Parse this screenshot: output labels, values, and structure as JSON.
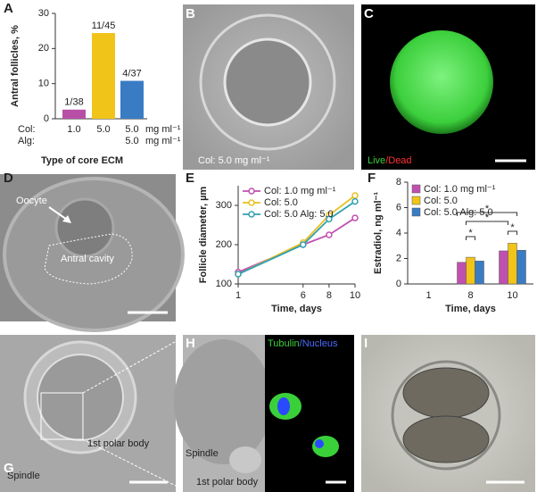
{
  "panels": {
    "letters": [
      "A",
      "B",
      "C",
      "D",
      "E",
      "F",
      "G",
      "H",
      "I"
    ],
    "b_caption": "Col: 5.0 mg ml⁻¹",
    "c_live": "Live",
    "c_dead": "/Dead",
    "d_oocyte": "Oocyte",
    "d_cavity": "Antral cavity",
    "g_spindle": "Spindle",
    "g_polar": "1st polar body",
    "h_spindle": "Spindle",
    "h_polar": "1st polar body",
    "h_tubulin": "Tubulin",
    "h_nucleus": "/Nucleus"
  },
  "chart_data": [
    {
      "type": "bar",
      "ylabel": "Antral follicles, %",
      "xlabel": "Type of core ECM",
      "row_labels": [
        "Col:",
        "Alg:"
      ],
      "categories": [
        "1.0",
        "5.0",
        "5.0"
      ],
      "alg": [
        null,
        null,
        "5.0"
      ],
      "unit": "mg ml⁻¹",
      "values": [
        2.6,
        24.4,
        10.8
      ],
      "value_labels": [
        "1/38",
        "11/45",
        "4/37"
      ],
      "colors": [
        "#b84fa6",
        "#f0c419",
        "#3a7cc4"
      ],
      "ylim": [
        0,
        30
      ],
      "yticks": [
        0,
        10,
        20,
        30
      ]
    },
    {
      "type": "line",
      "xlabel": "Time, days",
      "ylabel": "Follicle diameter, µm",
      "x": [
        1,
        6,
        8,
        10
      ],
      "xlim": [
        1,
        10
      ],
      "xticks": [
        1,
        6,
        8,
        10
      ],
      "ylim": [
        100,
        350
      ],
      "yticks": [
        100,
        200,
        300
      ],
      "series": [
        {
          "name": "Col: 1.0 mg ml⁻¹",
          "color": "#c050b0",
          "values": [
            130,
            200,
            225,
            268
          ]
        },
        {
          "name": "Col: 5.0",
          "color": "#e8c020",
          "values": [
            125,
            205,
            275,
            325
          ]
        },
        {
          "name": "Col: 5.0 Alg: 5.0",
          "color": "#30a0b0",
          "values": [
            125,
            200,
            265,
            310
          ]
        }
      ]
    },
    {
      "type": "grouped_bar",
      "xlabel": "Time, days",
      "ylabel": "Estradiol, ng ml⁻¹",
      "categories": [
        "1",
        "8",
        "10"
      ],
      "ylim": [
        0,
        8
      ],
      "yticks": [
        0,
        2,
        4,
        6,
        8
      ],
      "annotations": [
        "*",
        "*",
        "*",
        "*"
      ],
      "series": [
        {
          "name": "Col: 1.0 mg ml⁻¹",
          "color": "#c050b0",
          "values": [
            null,
            1.7,
            2.6
          ]
        },
        {
          "name": "Col: 5.0",
          "color": "#f0c419",
          "values": [
            null,
            2.1,
            3.2
          ]
        },
        {
          "name": "Col: 5.0 Alg: 5.0",
          "color": "#3a7cc4",
          "values": [
            null,
            1.8,
            2.65
          ]
        }
      ]
    }
  ]
}
